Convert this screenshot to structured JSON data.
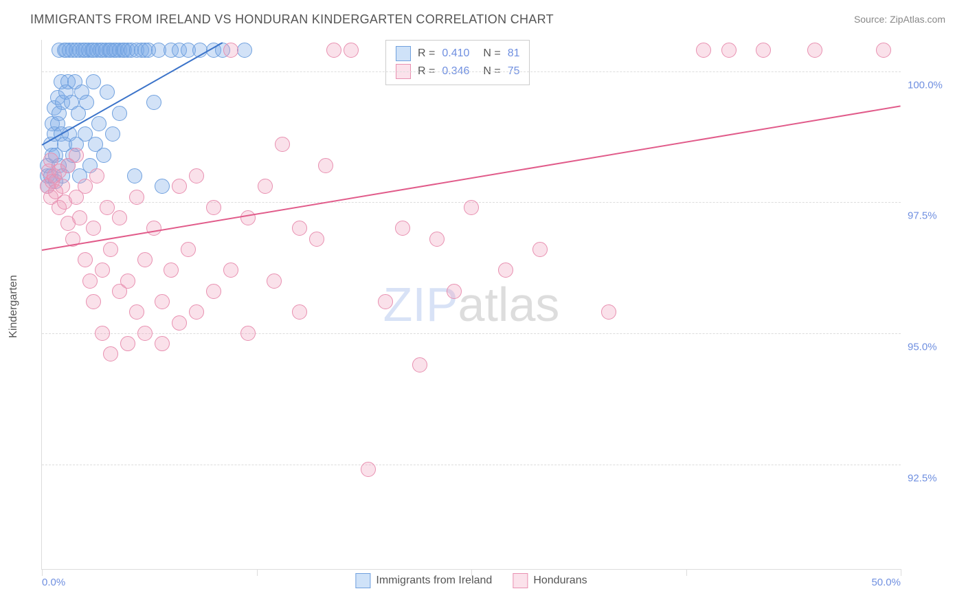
{
  "title": "IMMIGRANTS FROM IRELAND VS HONDURAN KINDERGARTEN CORRELATION CHART",
  "source": "Source: ZipAtlas.com",
  "watermark_zip": "ZIP",
  "watermark_atlas": "atlas",
  "ylabel": "Kindergarten",
  "chart": {
    "type": "scatter",
    "xlim": [
      0,
      50
    ],
    "ylim": [
      90.5,
      100.6
    ],
    "yticks": [
      92.5,
      95.0,
      97.5,
      100.0
    ],
    "ytick_labels": [
      "92.5%",
      "95.0%",
      "97.5%",
      "100.0%"
    ],
    "xticks": [
      0,
      25,
      50
    ],
    "xtick_labels": [
      "0.0%",
      "",
      "50.0%"
    ],
    "xtick_minor": [
      12.5,
      37.5
    ],
    "background_color": "#ffffff",
    "grid_color": "#dcdcdc",
    "marker_radius": 10,
    "marker_border_width": 1.5,
    "line_width": 2.5
  },
  "series": [
    {
      "id": "ireland",
      "label": "Immigrants from Ireland",
      "fill": "rgba(127,171,232,0.35)",
      "stroke": "#6fa0de",
      "swatch_fill": "#cfe2f8",
      "swatch_border": "#6fa0de",
      "r": "0.410",
      "n": "81",
      "regression": {
        "x1": 0,
        "y1": 98.6,
        "x2": 10.5,
        "y2": 100.55,
        "color": "#3b73c9"
      },
      "points": [
        [
          0.3,
          98.0
        ],
        [
          0.3,
          97.8
        ],
        [
          0.3,
          98.2
        ],
        [
          0.5,
          98.6
        ],
        [
          0.5,
          98.0
        ],
        [
          0.6,
          98.4
        ],
        [
          0.6,
          99.0
        ],
        [
          0.7,
          98.8
        ],
        [
          0.7,
          99.3
        ],
        [
          0.8,
          97.9
        ],
        [
          0.8,
          98.4
        ],
        [
          0.9,
          99.0
        ],
        [
          0.9,
          99.5
        ],
        [
          1.0,
          98.2
        ],
        [
          1.0,
          99.2
        ],
        [
          1.0,
          100.4
        ],
        [
          1.1,
          98.8
        ],
        [
          1.1,
          99.8
        ],
        [
          1.2,
          98.0
        ],
        [
          1.2,
          99.4
        ],
        [
          1.3,
          100.4
        ],
        [
          1.3,
          98.6
        ],
        [
          1.4,
          99.6
        ],
        [
          1.4,
          100.4
        ],
        [
          1.5,
          98.2
        ],
        [
          1.5,
          99.8
        ],
        [
          1.6,
          100.4
        ],
        [
          1.6,
          98.8
        ],
        [
          1.7,
          99.4
        ],
        [
          1.8,
          100.4
        ],
        [
          1.8,
          98.4
        ],
        [
          1.9,
          99.8
        ],
        [
          2.0,
          100.4
        ],
        [
          2.0,
          98.6
        ],
        [
          2.1,
          99.2
        ],
        [
          2.2,
          100.4
        ],
        [
          2.2,
          98.0
        ],
        [
          2.3,
          99.6
        ],
        [
          2.4,
          100.4
        ],
        [
          2.5,
          98.8
        ],
        [
          2.5,
          100.4
        ],
        [
          2.6,
          99.4
        ],
        [
          2.7,
          100.4
        ],
        [
          2.8,
          98.2
        ],
        [
          2.9,
          100.4
        ],
        [
          3.0,
          99.8
        ],
        [
          3.0,
          100.4
        ],
        [
          3.1,
          98.6
        ],
        [
          3.2,
          100.4
        ],
        [
          3.3,
          99.0
        ],
        [
          3.4,
          100.4
        ],
        [
          3.5,
          100.4
        ],
        [
          3.6,
          98.4
        ],
        [
          3.7,
          100.4
        ],
        [
          3.8,
          99.6
        ],
        [
          3.9,
          100.4
        ],
        [
          4.0,
          100.4
        ],
        [
          4.1,
          98.8
        ],
        [
          4.2,
          100.4
        ],
        [
          4.3,
          100.4
        ],
        [
          4.5,
          99.2
        ],
        [
          4.5,
          100.4
        ],
        [
          4.7,
          100.4
        ],
        [
          4.8,
          100.4
        ],
        [
          5.0,
          100.4
        ],
        [
          5.2,
          100.4
        ],
        [
          5.4,
          98.0
        ],
        [
          5.5,
          100.4
        ],
        [
          5.8,
          100.4
        ],
        [
          6.0,
          100.4
        ],
        [
          6.2,
          100.4
        ],
        [
          6.5,
          99.4
        ],
        [
          6.8,
          100.4
        ],
        [
          7.0,
          97.8
        ],
        [
          7.5,
          100.4
        ],
        [
          8.0,
          100.4
        ],
        [
          8.5,
          100.4
        ],
        [
          9.2,
          100.4
        ],
        [
          10.0,
          100.4
        ],
        [
          10.5,
          100.4
        ],
        [
          11.8,
          100.4
        ]
      ]
    },
    {
      "id": "honduran",
      "label": "Hondurans",
      "fill": "rgba(240,157,185,0.30)",
      "stroke": "#e88fb0",
      "swatch_fill": "#fbe2eb",
      "swatch_border": "#e88fb0",
      "r": "0.346",
      "n": "75",
      "regression": {
        "x1": 0,
        "y1": 96.6,
        "x2": 50,
        "y2": 99.35,
        "color": "#e15b8a"
      },
      "points": [
        [
          0.3,
          97.8
        ],
        [
          0.4,
          98.1
        ],
        [
          0.5,
          97.6
        ],
        [
          0.5,
          98.3
        ],
        [
          0.6,
          97.9
        ],
        [
          0.7,
          98.0
        ],
        [
          0.8,
          97.7
        ],
        [
          1.0,
          97.4
        ],
        [
          1.0,
          98.1
        ],
        [
          1.2,
          97.8
        ],
        [
          1.3,
          97.5
        ],
        [
          1.5,
          98.2
        ],
        [
          1.5,
          97.1
        ],
        [
          1.8,
          96.8
        ],
        [
          2.0,
          97.6
        ],
        [
          2.0,
          98.4
        ],
        [
          2.2,
          97.2
        ],
        [
          2.5,
          96.4
        ],
        [
          2.5,
          97.8
        ],
        [
          2.8,
          96.0
        ],
        [
          3.0,
          97.0
        ],
        [
          3.0,
          95.6
        ],
        [
          3.2,
          98.0
        ],
        [
          3.5,
          96.2
        ],
        [
          3.5,
          95.0
        ],
        [
          3.8,
          97.4
        ],
        [
          4.0,
          96.6
        ],
        [
          4.0,
          94.6
        ],
        [
          4.5,
          95.8
        ],
        [
          4.5,
          97.2
        ],
        [
          5.0,
          96.0
        ],
        [
          5.0,
          94.8
        ],
        [
          5.5,
          95.4
        ],
        [
          5.5,
          97.6
        ],
        [
          6.0,
          96.4
        ],
        [
          6.0,
          95.0
        ],
        [
          6.5,
          97.0
        ],
        [
          7.0,
          95.6
        ],
        [
          7.0,
          94.8
        ],
        [
          7.5,
          96.2
        ],
        [
          8.0,
          97.8
        ],
        [
          8.0,
          95.2
        ],
        [
          8.5,
          96.6
        ],
        [
          9.0,
          98.0
        ],
        [
          9.0,
          95.4
        ],
        [
          10.0,
          97.4
        ],
        [
          10.0,
          95.8
        ],
        [
          11.0,
          96.2
        ],
        [
          11.0,
          100.4
        ],
        [
          12.0,
          97.2
        ],
        [
          12.0,
          95.0
        ],
        [
          13.0,
          97.8
        ],
        [
          13.5,
          96.0
        ],
        [
          14.0,
          98.6
        ],
        [
          15.0,
          97.0
        ],
        [
          15.0,
          95.4
        ],
        [
          16.0,
          96.8
        ],
        [
          16.5,
          98.2
        ],
        [
          17.0,
          100.4
        ],
        [
          18.0,
          100.4
        ],
        [
          19.0,
          92.4
        ],
        [
          20.0,
          95.6
        ],
        [
          21.0,
          97.0
        ],
        [
          22.0,
          94.4
        ],
        [
          23.0,
          96.8
        ],
        [
          24.0,
          95.8
        ],
        [
          25.0,
          97.4
        ],
        [
          27.0,
          96.2
        ],
        [
          29.0,
          96.6
        ],
        [
          33.0,
          95.4
        ],
        [
          38.5,
          100.4
        ],
        [
          40.0,
          100.4
        ],
        [
          42.0,
          100.4
        ],
        [
          45.0,
          100.4
        ],
        [
          49.0,
          100.4
        ]
      ]
    }
  ],
  "legend_top": {
    "r_label": "R =",
    "n_label": "N ="
  }
}
